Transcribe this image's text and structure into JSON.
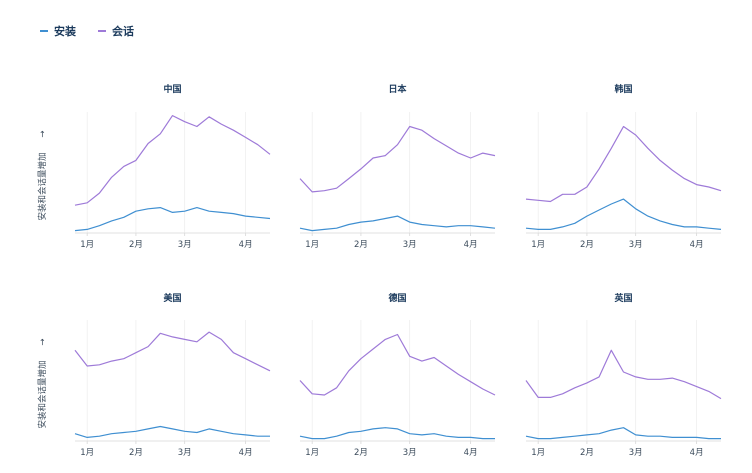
{
  "legend": [
    {
      "name": "安装",
      "color": "#3f8fd1"
    },
    {
      "name": "会话",
      "color": "#9e7ad8"
    }
  ],
  "y_axis_label": "安装和会话量增加",
  "y_axis_arrow": "→",
  "chart_data": {
    "type": "line",
    "x": [
      "01-01",
      "01-08",
      "01-15",
      "01-22",
      "01-29",
      "02-05",
      "02-12",
      "02-19",
      "02-26",
      "03-05",
      "03-12",
      "03-19",
      "03-26",
      "04-02",
      "04-09",
      "04-16",
      "04-23"
    ],
    "tick_labels": [
      "1月",
      "2月",
      "3月",
      "4月"
    ],
    "tick_dates": [
      "01-08",
      "02-05",
      "03-05",
      "04-09"
    ],
    "ylim": [
      0,
      100
    ],
    "panels": [
      {
        "title": "中国",
        "series": [
          {
            "name": "安装",
            "values": [
              2,
              3,
              6,
              10,
              13,
              18,
              20,
              21,
              17,
              18,
              21,
              18,
              17,
              16,
              14,
              13,
              12
            ]
          },
          {
            "name": "会话",
            "values": [
              23,
              25,
              33,
              46,
              55,
              60,
              74,
              82,
              97,
              92,
              88,
              96,
              90,
              85,
              79,
              73,
              65
            ]
          }
        ]
      },
      {
        "title": "日本",
        "series": [
          {
            "name": "安装",
            "values": [
              4,
              2,
              3,
              4,
              7,
              9,
              10,
              12,
              14,
              9,
              7,
              6,
              5,
              6,
              6,
              5,
              4
            ]
          },
          {
            "name": "会话",
            "values": [
              45,
              34,
              35,
              37,
              45,
              53,
              62,
              64,
              73,
              88,
              85,
              78,
              72,
              66,
              62,
              66,
              64
            ]
          },
          {
            "name": "_hidden",
            "values": []
          }
        ]
      },
      {
        "title": "韩国",
        "series": [
          {
            "name": "安装",
            "values": [
              4,
              3,
              3,
              5,
              8,
              14,
              19,
              24,
              28,
              20,
              14,
              10,
              7,
              5,
              5,
              4,
              3
            ]
          },
          {
            "name": "会话",
            "values": [
              28,
              27,
              26,
              32,
              32,
              38,
              53,
              70,
              88,
              81,
              70,
              60,
              52,
              45,
              40,
              38,
              35
            ]
          }
        ]
      },
      {
        "title": "美国",
        "series": [
          {
            "name": "安装",
            "values": [
              6,
              3,
              4,
              6,
              7,
              8,
              10,
              12,
              10,
              8,
              7,
              10,
              8,
              6,
              5,
              4,
              4
            ]
          },
          {
            "name": "会话",
            "values": [
              75,
              62,
              63,
              66,
              68,
              73,
              78,
              89,
              86,
              84,
              82,
              90,
              84,
              73,
              68,
              63,
              58
            ]
          }
        ]
      },
      {
        "title": "德国",
        "series": [
          {
            "name": "安装",
            "values": [
              4,
              2,
              2,
              4,
              7,
              8,
              10,
              11,
              10,
              6,
              5,
              6,
              4,
              3,
              3,
              2,
              2
            ]
          },
          {
            "name": "会话",
            "values": [
              50,
              39,
              38,
              44,
              58,
              68,
              76,
              84,
              88,
              70,
              66,
              69,
              62,
              55,
              49,
              43,
              38
            ]
          }
        ]
      },
      {
        "title": "英国",
        "series": [
          {
            "name": "安装",
            "values": [
              4,
              2,
              2,
              3,
              4,
              5,
              6,
              9,
              11,
              5,
              4,
              4,
              3,
              3,
              3,
              2,
              2
            ]
          },
          {
            "name": "会话",
            "values": [
              50,
              36,
              36,
              39,
              44,
              48,
              53,
              75,
              57,
              53,
              51,
              51,
              52,
              49,
              45,
              41,
              35
            ]
          }
        ]
      }
    ]
  }
}
